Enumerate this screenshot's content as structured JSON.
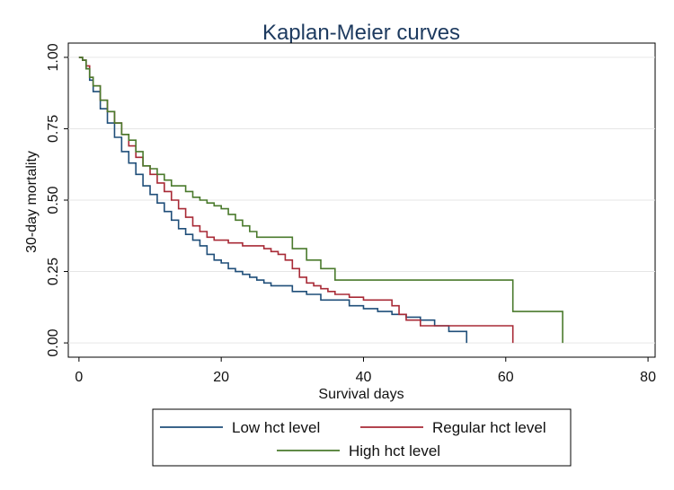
{
  "chart_data": {
    "type": "line",
    "step": true,
    "title": "Kaplan-Meier curves",
    "xlabel": "Survival days",
    "ylabel": "30-day mortality",
    "xlim": [
      -1.5,
      81
    ],
    "ylim": [
      -0.05,
      1.05
    ],
    "xticks": [
      0,
      20,
      40,
      60,
      80
    ],
    "xtick_labels": [
      "0",
      "20",
      "40",
      "60",
      "80"
    ],
    "yticks": [
      0,
      0.25,
      0.5,
      0.75,
      1.0
    ],
    "ytick_labels": [
      "0.00",
      "0.25",
      "0.50",
      "0.75",
      "1.00"
    ],
    "grid": true,
    "legend_position": "bottom",
    "series": [
      {
        "name": "Low hct level",
        "color": "#1f4e79",
        "x": [
          0,
          0.5,
          1,
          1.5,
          2,
          3,
          4,
          5,
          6,
          7,
          8,
          9,
          10,
          11,
          12,
          13,
          14,
          15,
          16,
          17,
          18,
          19,
          20,
          21,
          22,
          23,
          24,
          25,
          26,
          27,
          28,
          30,
          32,
          34,
          36,
          38,
          40,
          42,
          44,
          46,
          48,
          50,
          52,
          54.5
        ],
        "y": [
          1.0,
          0.99,
          0.96,
          0.92,
          0.88,
          0.82,
          0.77,
          0.72,
          0.67,
          0.63,
          0.59,
          0.55,
          0.52,
          0.49,
          0.46,
          0.43,
          0.4,
          0.38,
          0.36,
          0.34,
          0.31,
          0.29,
          0.28,
          0.26,
          0.25,
          0.24,
          0.23,
          0.22,
          0.21,
          0.2,
          0.2,
          0.18,
          0.17,
          0.15,
          0.15,
          0.13,
          0.12,
          0.11,
          0.1,
          0.09,
          0.08,
          0.06,
          0.04,
          0.0
        ]
      },
      {
        "name": "Regular hct level",
        "color": "#a82a36",
        "x": [
          0,
          0.5,
          1,
          1.5,
          2,
          3,
          4,
          5,
          6,
          7,
          8,
          9,
          10,
          11,
          12,
          13,
          14,
          15,
          16,
          17,
          18,
          19,
          20,
          21,
          22,
          23,
          24,
          25,
          26,
          27,
          28,
          29,
          30,
          31,
          32,
          33,
          34,
          35,
          36,
          38,
          40,
          42,
          44,
          45,
          46,
          48,
          50,
          52,
          56,
          61
        ],
        "y": [
          1.0,
          0.99,
          0.97,
          0.93,
          0.9,
          0.85,
          0.81,
          0.77,
          0.73,
          0.69,
          0.65,
          0.62,
          0.59,
          0.56,
          0.53,
          0.5,
          0.47,
          0.44,
          0.41,
          0.39,
          0.37,
          0.36,
          0.36,
          0.35,
          0.35,
          0.34,
          0.34,
          0.34,
          0.33,
          0.32,
          0.31,
          0.29,
          0.26,
          0.23,
          0.21,
          0.2,
          0.19,
          0.18,
          0.17,
          0.16,
          0.15,
          0.15,
          0.13,
          0.1,
          0.08,
          0.06,
          0.06,
          0.06,
          0.06,
          0.0
        ]
      },
      {
        "name": "High hct level",
        "color": "#4a7a2c",
        "x": [
          0,
          0.5,
          1,
          1.5,
          2,
          3,
          4,
          5,
          6,
          7,
          8,
          9,
          10,
          11,
          12,
          13,
          14,
          15,
          16,
          17,
          18,
          19,
          20,
          21,
          22,
          23,
          24,
          25,
          27,
          29,
          30,
          32,
          34,
          36,
          40,
          45,
          50,
          55,
          61,
          65,
          68
        ],
        "y": [
          1.0,
          0.99,
          0.96,
          0.93,
          0.9,
          0.85,
          0.81,
          0.77,
          0.73,
          0.71,
          0.67,
          0.62,
          0.61,
          0.59,
          0.57,
          0.55,
          0.55,
          0.53,
          0.51,
          0.5,
          0.49,
          0.48,
          0.47,
          0.45,
          0.43,
          0.41,
          0.39,
          0.37,
          0.37,
          0.37,
          0.33,
          0.29,
          0.26,
          0.22,
          0.22,
          0.22,
          0.22,
          0.22,
          0.11,
          0.11,
          0.0
        ]
      }
    ]
  }
}
